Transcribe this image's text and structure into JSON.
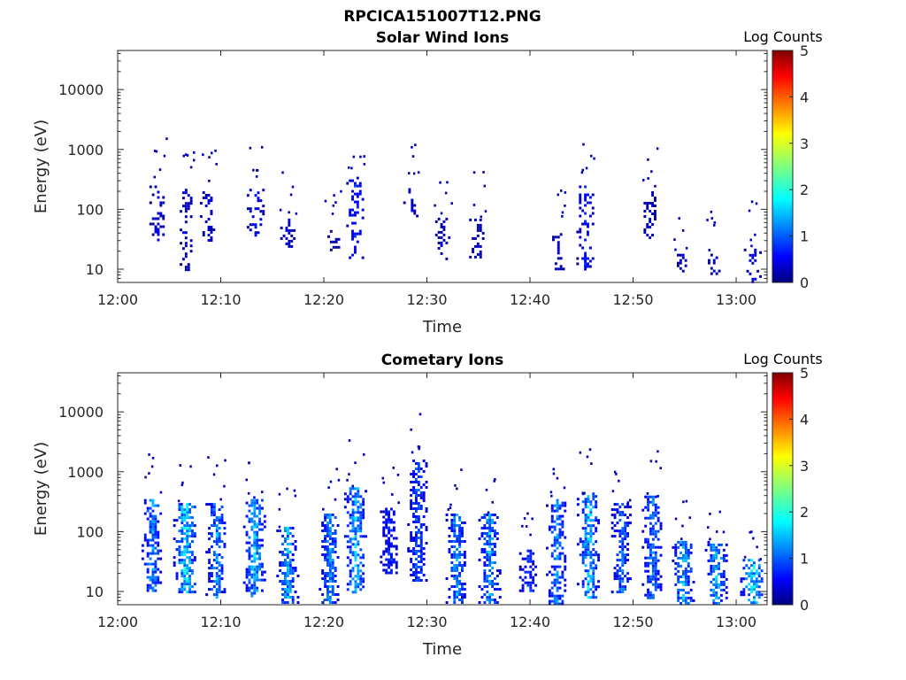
{
  "figure_title": "RPCICA151007T12.PNG",
  "chart_data": [
    {
      "type": "heatmap",
      "title": "Solar Wind Ions",
      "xlabel": "Time",
      "ylabel": "Energy (eV)",
      "x_ticks": [
        "12:00",
        "12:10",
        "12:20",
        "12:30",
        "12:40",
        "12:50",
        "13:00"
      ],
      "x_range_minutes": [
        0,
        63
      ],
      "y_ticks": [
        "10",
        "100",
        "1000",
        "10000"
      ],
      "y_scale": "log",
      "y_range": [
        6,
        45000
      ],
      "colorbar": {
        "label": "Log Counts",
        "ticks": [
          "0",
          "1",
          "2",
          "3",
          "4",
          "5"
        ],
        "range": [
          0,
          5
        ],
        "colormap": "jet"
      },
      "clusters": [
        {
          "t": 3.8,
          "e_low": 30,
          "e_high": 250,
          "level": 0.5
        },
        {
          "t": 6.5,
          "e_low": 10,
          "e_high": 220,
          "level": 0.5
        },
        {
          "t": 8.7,
          "e_low": 30,
          "e_high": 200,
          "level": 0.5
        },
        {
          "t": 13.3,
          "e_low": 35,
          "e_high": 220,
          "level": 0.7
        },
        {
          "t": 16.5,
          "e_low": 25,
          "e_high": 70,
          "level": 0.5
        },
        {
          "t": 20.8,
          "e_low": 20,
          "e_high": 45,
          "level": 0.4
        },
        {
          "t": 23.0,
          "e_low": 15,
          "e_high": 350,
          "level": 0.9
        },
        {
          "t": 28.4,
          "e_low": 80,
          "e_high": 250,
          "level": 0.4
        },
        {
          "t": 31.5,
          "e_low": 15,
          "e_high": 80,
          "level": 0.4
        },
        {
          "t": 34.8,
          "e_low": 15,
          "e_high": 70,
          "level": 0.4
        },
        {
          "t": 42.6,
          "e_low": 10,
          "e_high": 40,
          "level": 0.4
        },
        {
          "t": 45.3,
          "e_low": 10,
          "e_high": 250,
          "level": 0.8
        },
        {
          "t": 51.5,
          "e_low": 35,
          "e_high": 200,
          "level": 0.5
        },
        {
          "t": 54.7,
          "e_low": 8,
          "e_high": 18,
          "level": 0.4
        },
        {
          "t": 57.7,
          "e_low": 8,
          "e_high": 20,
          "level": 0.4
        },
        {
          "t": 61.5,
          "e_low": 6,
          "e_high": 22,
          "level": 0.6
        }
      ]
    },
    {
      "type": "heatmap",
      "title": "Cometary Ions",
      "xlabel": "Time",
      "ylabel": "Energy (eV)",
      "x_ticks": [
        "12:00",
        "12:10",
        "12:20",
        "12:30",
        "12:40",
        "12:50",
        "13:00"
      ],
      "x_range_minutes": [
        0,
        63
      ],
      "y_ticks": [
        "10",
        "100",
        "1000",
        "10000"
      ],
      "y_scale": "log",
      "y_range": [
        6,
        45000
      ],
      "colorbar": {
        "label": "Log Counts",
        "ticks": [
          "0",
          "1",
          "2",
          "3",
          "4",
          "5"
        ],
        "range": [
          0,
          5
        ],
        "colormap": "jet"
      },
      "clusters": [
        {
          "t": 3.3,
          "e_low": 10,
          "e_high": 350,
          "level": 1.5
        },
        {
          "t": 6.5,
          "e_low": 10,
          "e_high": 300,
          "level": 2.0
        },
        {
          "t": 9.5,
          "e_low": 8,
          "e_high": 300,
          "level": 1.5
        },
        {
          "t": 13.2,
          "e_low": 8,
          "e_high": 350,
          "level": 1.7
        },
        {
          "t": 16.4,
          "e_low": 6,
          "e_high": 120,
          "level": 1.6
        },
        {
          "t": 20.5,
          "e_low": 6,
          "e_high": 200,
          "level": 1.5
        },
        {
          "t": 23.0,
          "e_low": 10,
          "e_high": 550,
          "level": 1.7
        },
        {
          "t": 26.3,
          "e_low": 20,
          "e_high": 250,
          "level": 1.0
        },
        {
          "t": 29.0,
          "e_low": 15,
          "e_high": 1600,
          "level": 1.2
        },
        {
          "t": 32.8,
          "e_low": 6,
          "e_high": 200,
          "level": 1.5
        },
        {
          "t": 36.0,
          "e_low": 6,
          "e_high": 200,
          "level": 1.6
        },
        {
          "t": 39.8,
          "e_low": 10,
          "e_high": 50,
          "level": 1.0
        },
        {
          "t": 42.5,
          "e_low": 6,
          "e_high": 350,
          "level": 1.4
        },
        {
          "t": 45.6,
          "e_low": 8,
          "e_high": 450,
          "level": 1.8
        },
        {
          "t": 48.8,
          "e_low": 10,
          "e_high": 300,
          "level": 1.3
        },
        {
          "t": 51.8,
          "e_low": 8,
          "e_high": 400,
          "level": 1.4
        },
        {
          "t": 54.8,
          "e_low": 6,
          "e_high": 70,
          "level": 1.7
        },
        {
          "t": 58.0,
          "e_low": 6,
          "e_high": 70,
          "level": 1.7
        },
        {
          "t": 61.5,
          "e_low": 6,
          "e_high": 35,
          "level": 2.0
        }
      ]
    }
  ]
}
